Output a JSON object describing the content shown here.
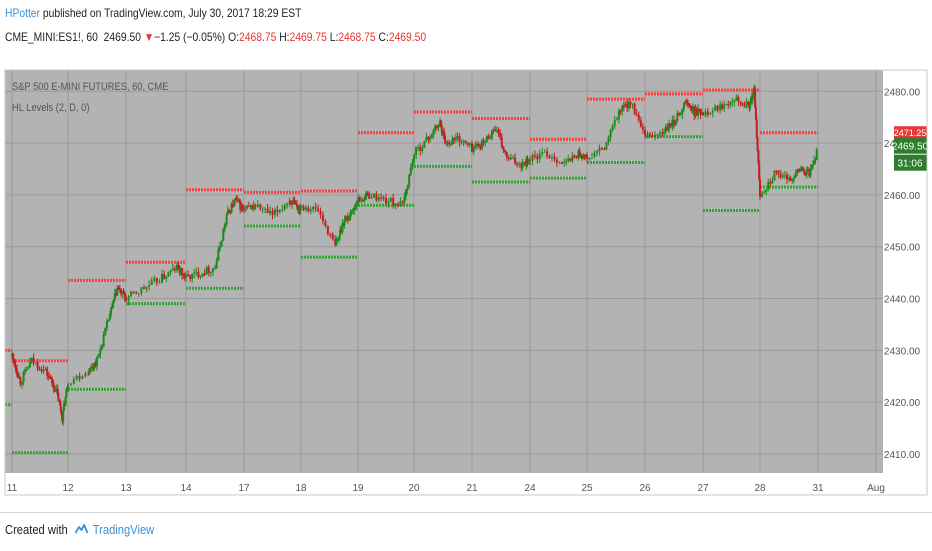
{
  "header": {
    "author": "HPotter",
    "published_text": " published on TradingView.com, July 30, 2017 18:29 EST",
    "symbol": "CME_MINI:ES1!, 60",
    "last_price": "2469.50",
    "change_arrow": "▼",
    "change": "−1.25 (−0.05%)",
    "o_label": "O:",
    "o_value": "2468.75",
    "h_label": "H:",
    "h_value": "2469.75",
    "l_label": "L:",
    "l_value": "2468.75",
    "c_label": "C:",
    "c_value": "2469.50"
  },
  "chart": {
    "series_title": "S&P 500 E-MINI FUTURES, 60, CME",
    "indicator": "HL Levels (2, D, 0)",
    "price_tag": "2469.50",
    "red_tag": "2471.25",
    "countdown": "31:06"
  },
  "footer": {
    "created_with": "Created with",
    "brand": "TradingView"
  },
  "colors": {
    "plot_bg": "#b3b3b3",
    "grid": "#9a9a9a",
    "high_level": "#ff3d3d",
    "low_level": "#2fa82f",
    "candle_up": "#1d8a1d",
    "candle_down": "#c02020",
    "price_tag": "#2d7d2d",
    "red_tag": "#e53935",
    "countdown_tag": "#2d7d2d"
  },
  "chart_data": {
    "type": "line",
    "title": "S&P 500 E-MINI FUTURES, 60, CME",
    "x_tick_labels": [
      "11",
      "12",
      "13",
      "14",
      "17",
      "18",
      "19",
      "20",
      "21",
      "24",
      "25",
      "26",
      "27",
      "28",
      "31",
      "Aug"
    ],
    "y_tick_labels": [
      "2480.00",
      "2470.00",
      "2460.00",
      "2450.00",
      "2440.00",
      "2430.00",
      "2420.00",
      "2410.00"
    ],
    "ylim": [
      2407,
      2484
    ],
    "grid": true,
    "series": [
      {
        "name": "HL Levels High",
        "segments": [
          {
            "from": "11",
            "to": "11",
            "value": 2430.0
          },
          {
            "from": "11",
            "to": "12",
            "value": 2428.0
          },
          {
            "from": "12",
            "to": "13",
            "value": 2443.5
          },
          {
            "from": "13",
            "to": "14",
            "value": 2447.0
          },
          {
            "from": "14",
            "to": "17",
            "value": 2461.0
          },
          {
            "from": "17",
            "to": "18",
            "value": 2460.5
          },
          {
            "from": "18",
            "to": "19",
            "value": 2460.75
          },
          {
            "from": "19",
            "to": "20",
            "value": 2472.0
          },
          {
            "from": "20",
            "to": "21",
            "value": 2476.0
          },
          {
            "from": "21",
            "to": "24",
            "value": 2474.75
          },
          {
            "from": "24",
            "to": "25",
            "value": 2470.75
          },
          {
            "from": "25",
            "to": "26",
            "value": 2478.5
          },
          {
            "from": "26",
            "to": "27",
            "value": 2479.5
          },
          {
            "from": "27",
            "to": "28",
            "value": 2480.25
          },
          {
            "from": "28",
            "to": "31",
            "value": 2472.0
          }
        ]
      },
      {
        "name": "HL Levels Low",
        "segments": [
          {
            "from": "11",
            "to": "11",
            "value": 2419.5
          },
          {
            "from": "11",
            "to": "12",
            "value": 2410.25
          },
          {
            "from": "12",
            "to": "13",
            "value": 2422.5
          },
          {
            "from": "13",
            "to": "14",
            "value": 2439.0
          },
          {
            "from": "14",
            "to": "17",
            "value": 2442.0
          },
          {
            "from": "17",
            "to": "18",
            "value": 2454.0
          },
          {
            "from": "18",
            "to": "19",
            "value": 2448.0
          },
          {
            "from": "19",
            "to": "20",
            "value": 2458.0
          },
          {
            "from": "20",
            "to": "21",
            "value": 2465.5
          },
          {
            "from": "21",
            "to": "24",
            "value": 2462.5
          },
          {
            "from": "24",
            "to": "25",
            "value": 2463.25
          },
          {
            "from": "25",
            "to": "26",
            "value": 2466.25
          },
          {
            "from": "26",
            "to": "27",
            "value": 2471.25
          },
          {
            "from": "27",
            "to": "28",
            "value": 2457.0
          },
          {
            "from": "28",
            "to": "31",
            "value": 2461.5
          }
        ]
      },
      {
        "name": "Price path",
        "x_day_index": [
          0.0,
          0.15,
          0.35,
          0.6,
          0.8,
          0.9,
          1.0,
          1.35,
          1.5,
          1.7,
          1.85,
          2.0,
          2.3,
          2.6,
          2.85,
          3.0,
          3.25,
          3.5,
          3.7,
          3.85,
          4.0,
          4.2,
          4.5,
          4.8,
          4.95,
          5.0,
          5.3,
          5.6,
          5.75,
          5.85,
          6.0,
          6.2,
          6.5,
          6.8,
          7.0,
          7.25,
          7.45,
          7.55,
          7.75,
          8.0,
          8.2,
          8.4,
          8.6,
          8.85,
          9.0,
          9.3,
          9.6,
          9.85,
          10.0,
          10.3,
          10.55,
          10.75,
          11.0,
          11.3,
          11.5,
          11.7,
          11.85,
          12.0,
          12.3,
          12.55,
          12.8,
          12.9,
          13.0,
          13.25,
          13.5,
          13.7,
          13.85,
          14.0
        ],
        "values": [
          2429,
          2424,
          2428,
          2426,
          2422,
          2417,
          2424,
          2426,
          2428,
          2436,
          2442,
          2440,
          2442,
          2444,
          2446,
          2444,
          2445,
          2446,
          2456,
          2459,
          2457,
          2458,
          2456,
          2459,
          2457,
          2458,
          2457,
          2450,
          2455,
          2456,
          2459,
          2460,
          2459,
          2458,
          2468,
          2471,
          2474,
          2470,
          2471,
          2469,
          2470,
          2473,
          2467,
          2466,
          2467,
          2468,
          2466,
          2468,
          2467,
          2469,
          2476,
          2478,
          2471,
          2472,
          2474,
          2478,
          2476,
          2476,
          2477,
          2479,
          2477,
          2480,
          2460,
          2464,
          2463,
          2465,
          2464,
          2469
        ]
      }
    ]
  }
}
